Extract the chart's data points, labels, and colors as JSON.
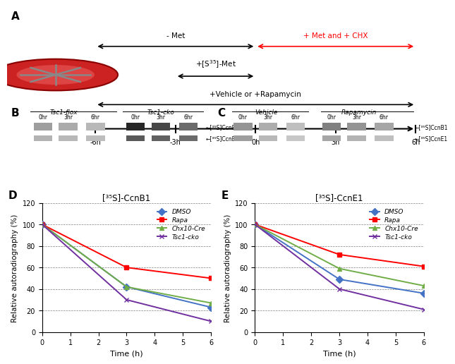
{
  "panel_D": {
    "title": "[³⁵S]-CcnB1",
    "xlabel": "Time (h)",
    "ylabel": "Relative autoradiography (%)",
    "xlim": [
      0,
      6
    ],
    "ylim": [
      0,
      120
    ],
    "yticks": [
      0,
      20,
      40,
      60,
      80,
      100,
      120
    ],
    "xticks": [
      0,
      1,
      2,
      3,
      4,
      5,
      6
    ],
    "series": [
      {
        "label": "DMSO",
        "color": "#4472c4",
        "marker": "D",
        "x": [
          0,
          3,
          6
        ],
        "y": [
          100,
          42,
          23
        ]
      },
      {
        "label": "Rapa",
        "color": "#ff0000",
        "marker": "s",
        "x": [
          0,
          3,
          6
        ],
        "y": [
          100,
          60,
          50
        ]
      },
      {
        "label": "Chx10-Cre",
        "color": "#70ad47",
        "marker": "^",
        "x": [
          0,
          3,
          6
        ],
        "y": [
          100,
          42,
          27
        ]
      },
      {
        "label": "Tsc1-cko",
        "color": "#7030a0",
        "marker": "x",
        "x": [
          0,
          3,
          6
        ],
        "y": [
          100,
          30,
          10
        ]
      }
    ]
  },
  "panel_E": {
    "title": "[³⁵S]-CcnE1",
    "xlabel": "Time (h)",
    "ylabel": "Relative autoradiography (%)",
    "xlim": [
      0,
      6
    ],
    "ylim": [
      0,
      120
    ],
    "yticks": [
      0,
      20,
      40,
      60,
      80,
      100,
      120
    ],
    "xticks": [
      0,
      1,
      2,
      3,
      4,
      5,
      6
    ],
    "series": [
      {
        "label": "DMSO",
        "color": "#4472c4",
        "marker": "D",
        "x": [
          0,
          3,
          6
        ],
        "y": [
          100,
          49,
          36
        ]
      },
      {
        "label": "Rapa",
        "color": "#ff0000",
        "marker": "s",
        "x": [
          0,
          3,
          6
        ],
        "y": [
          100,
          72,
          61
        ]
      },
      {
        "label": "Chx10-Cre",
        "color": "#70ad47",
        "marker": "^",
        "x": [
          0,
          3,
          6
        ],
        "y": [
          100,
          59,
          43
        ]
      },
      {
        "label": "Tsc1-cko",
        "color": "#7030a0",
        "marker": "x",
        "x": [
          0,
          3,
          6
        ],
        "y": [
          100,
          40,
          21
        ]
      }
    ]
  },
  "bg_color": "#ffffff",
  "cell_color_outer": "#cc2222",
  "cell_color_inner": "#dd4444",
  "cell_edge_color": "#880000",
  "arrow_color_black": "black",
  "arrow_color_red": "#ff0000",
  "met_label": "- Met",
  "met_chx_label": "+ Met and + CHX",
  "s35_met_label": "+[S$^{35}$]-Met",
  "vehicle_rapa_label": "+Vehicle or +Rapamycin",
  "timeline_labels": [
    "-6h",
    "-3h",
    "0h",
    "3h",
    "6h"
  ],
  "panel_A_label": "A",
  "panel_B_label": "B",
  "panel_C_label": "C",
  "panel_D_label": "D",
  "panel_E_label": "E",
  "tsc1_flox_label": "Tsc1-flox",
  "tsc1_cko_label": "Tsc1-cko",
  "vehicle_label": "Vehicle",
  "rapamycin_label": "Rapamycin",
  "ccnb1_label": "←[³⁵S]CcnB1",
  "ccne1_label": "←[³⁵S]CcnE1",
  "time_labels": [
    "0hr",
    "3hr",
    "6hr"
  ]
}
